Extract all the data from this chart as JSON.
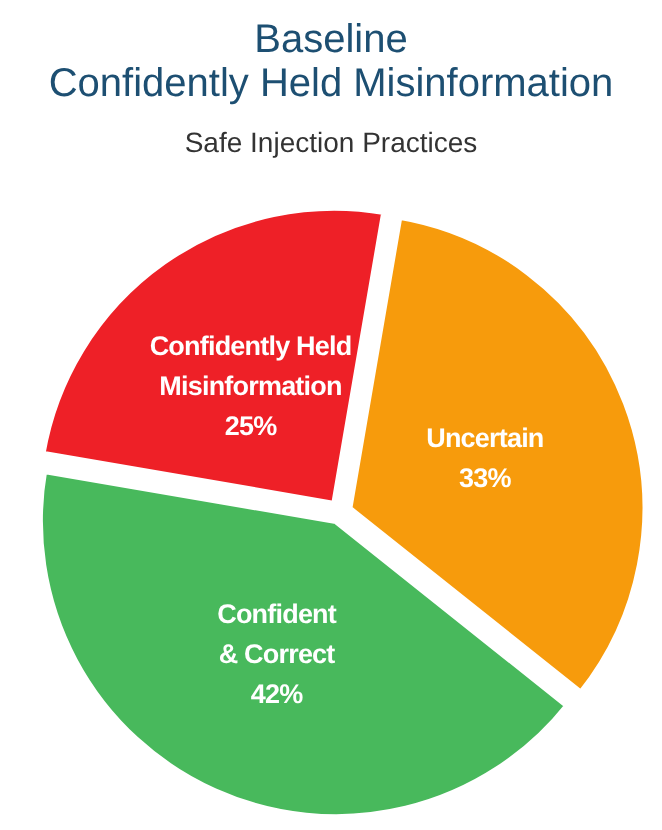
{
  "chart_data": {
    "type": "pie",
    "title": "Baseline\nConfidently Held Misinformation",
    "subtitle": "Safe Injection Practices",
    "categories": [
      "Uncertain",
      "Confident\n& Correct",
      "Confidently Held\nMisinformation"
    ],
    "values": [
      33,
      42,
      25
    ],
    "colors": [
      "#f79b0c",
      "#48b95c",
      "#ee2027"
    ],
    "value_labels": [
      "33%",
      "42%",
      "25%"
    ]
  }
}
